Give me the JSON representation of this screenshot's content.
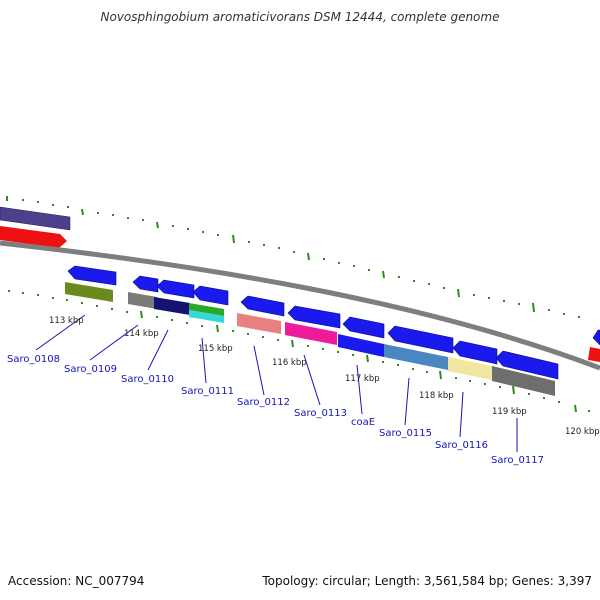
{
  "title": "Novosphingobium aromaticivorans DSM 12444, complete genome",
  "footer": {
    "accession": "Accession: NC_007794",
    "stats": "Topology: circular; Length: 3,561,584 bp; Genes: 3,397"
  },
  "ticks": [
    "113 kbp",
    "114 kbp",
    "115 kbp",
    "116 kbp",
    "117 kbp",
    "118 kbp",
    "119 kbp",
    "120 kbp"
  ],
  "genes": [
    "Saro_0108",
    "Saro_0109",
    "Saro_0110",
    "Saro_0111",
    "Saro_0112",
    "Saro_0113",
    "coaE",
    "Saro_0115",
    "Saro_0116",
    "Saro_0117"
  ],
  "colors": {
    "genome_line": "#8a8a8a",
    "tick": "#2e8b1e",
    "gene_arrow": "#1a1aee",
    "label_text": "#1515b5",
    "cds_red": "#ee1111",
    "purple": "#4e3f8c",
    "olive": "#6b8a1e",
    "grey": "#7a7a7a",
    "navy": "#141470",
    "green": "#2aa82a",
    "cyan": "#35d8d8",
    "salmon": "#e88080",
    "magenta": "#ee1a9a",
    "steelblue": "#4a86c0",
    "khaki": "#f0e6a0"
  }
}
